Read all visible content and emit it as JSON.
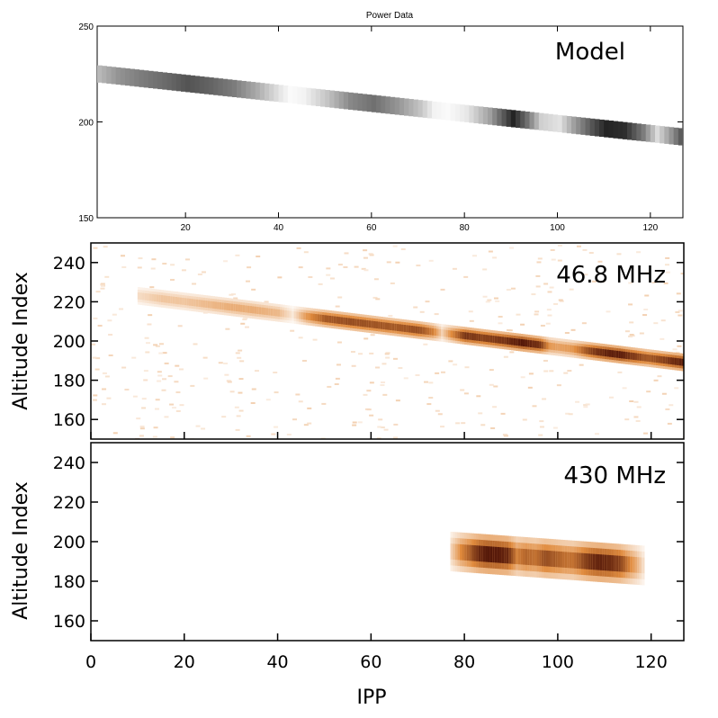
{
  "figure": {
    "title": "Power Data"
  },
  "chart_data": [
    {
      "type": "heatmap",
      "panel": "Model",
      "label": "Model",
      "title": "Power Data",
      "xlim": [
        1,
        127
      ],
      "ylim": [
        150,
        250
      ],
      "xticks": [
        20,
        40,
        60,
        80,
        100,
        120
      ],
      "yticks": [
        150,
        200,
        250
      ],
      "colormap": "gray",
      "colors": {
        "low": "#ffffff",
        "high": "#111111"
      },
      "trace": {
        "x": [
          1,
          127
        ],
        "alt": [
          225,
          192
        ],
        "width": 9
      },
      "intensity": [
        [
          1,
          0.3
        ],
        [
          5,
          0.45
        ],
        [
          10,
          0.55
        ],
        [
          15,
          0.62
        ],
        [
          20,
          0.72
        ],
        [
          25,
          0.65
        ],
        [
          30,
          0.55
        ],
        [
          35,
          0.35
        ],
        [
          40,
          0.1
        ],
        [
          42,
          0.02
        ],
        [
          45,
          0.05
        ],
        [
          50,
          0.25
        ],
        [
          55,
          0.5
        ],
        [
          60,
          0.6
        ],
        [
          65,
          0.45
        ],
        [
          70,
          0.25
        ],
        [
          73,
          0.05
        ],
        [
          76,
          0.02
        ],
        [
          80,
          0.1
        ],
        [
          85,
          0.4
        ],
        [
          90,
          0.92
        ],
        [
          93,
          0.6
        ],
        [
          96,
          0.2
        ],
        [
          100,
          0.12
        ],
        [
          103,
          0.4
        ],
        [
          107,
          0.72
        ],
        [
          110,
          0.92
        ],
        [
          114,
          0.88
        ],
        [
          118,
          0.55
        ],
        [
          121,
          0.15
        ],
        [
          124,
          0.45
        ],
        [
          127,
          0.8
        ]
      ]
    },
    {
      "type": "heatmap",
      "panel": "46.8 MHz",
      "label": "46.8 MHz",
      "ylabel": "Altitude Index",
      "xlim": [
        0,
        127
      ],
      "ylim": [
        150,
        250
      ],
      "yticks": [
        160,
        180,
        200,
        220,
        240
      ],
      "colormap": "orange-brown",
      "colors": {
        "low": "#ffffff",
        "mid": "#e08a3c",
        "high": "#4a0f05"
      },
      "trace": {
        "x": [
          10,
          127
        ],
        "alt": [
          223,
          189
        ],
        "width": 9
      },
      "intensity": [
        [
          10,
          0.15
        ],
        [
          15,
          0.25
        ],
        [
          20,
          0.25
        ],
        [
          25,
          0.3
        ],
        [
          30,
          0.35
        ],
        [
          35,
          0.35
        ],
        [
          40,
          0.3
        ],
        [
          43,
          0.1
        ],
        [
          46,
          0.45
        ],
        [
          50,
          0.7
        ],
        [
          55,
          0.75
        ],
        [
          60,
          0.72
        ],
        [
          65,
          0.7
        ],
        [
          70,
          0.75
        ],
        [
          73,
          0.55
        ],
        [
          75,
          0.2
        ],
        [
          77,
          0.5
        ],
        [
          80,
          0.85
        ],
        [
          84,
          0.8
        ],
        [
          88,
          0.85
        ],
        [
          92,
          0.97
        ],
        [
          96,
          0.85
        ],
        [
          98,
          0.45
        ],
        [
          100,
          0.4
        ],
        [
          103,
          0.45
        ],
        [
          107,
          0.8
        ],
        [
          110,
          0.92
        ],
        [
          113,
          0.95
        ],
        [
          116,
          0.82
        ],
        [
          119,
          0.7
        ],
        [
          122,
          0.78
        ],
        [
          125,
          0.9
        ],
        [
          127,
          0.95
        ]
      ]
    },
    {
      "type": "heatmap",
      "panel": "430 MHz",
      "label": "430 MHz",
      "xlabel": "IPP",
      "ylabel": "Altitude Index",
      "xlim": [
        0,
        127
      ],
      "ylim": [
        150,
        250
      ],
      "xticks": [
        0,
        20,
        40,
        60,
        80,
        100,
        120
      ],
      "yticks": [
        160,
        180,
        200,
        220,
        240
      ],
      "colormap": "orange-brown",
      "colors": {
        "low": "#ffffff",
        "mid": "#e08a3c",
        "high": "#4a0f05"
      },
      "trace": {
        "x": [
          77,
          118
        ],
        "alt": [
          195,
          188
        ],
        "width": 20
      },
      "intensity": [
        [
          77,
          0.2
        ],
        [
          79,
          0.5
        ],
        [
          81,
          0.7
        ],
        [
          83,
          0.9
        ],
        [
          85,
          0.97
        ],
        [
          87,
          0.95
        ],
        [
          89,
          0.9
        ],
        [
          91,
          0.55
        ],
        [
          93,
          0.65
        ],
        [
          95,
          0.6
        ],
        [
          97,
          0.75
        ],
        [
          99,
          0.7
        ],
        [
          101,
          0.62
        ],
        [
          103,
          0.6
        ],
        [
          105,
          0.75
        ],
        [
          107,
          0.88
        ],
        [
          109,
          0.92
        ],
        [
          111,
          0.88
        ],
        [
          113,
          0.8
        ],
        [
          115,
          0.55
        ],
        [
          117,
          0.3
        ],
        [
          118,
          0.15
        ]
      ]
    }
  ]
}
